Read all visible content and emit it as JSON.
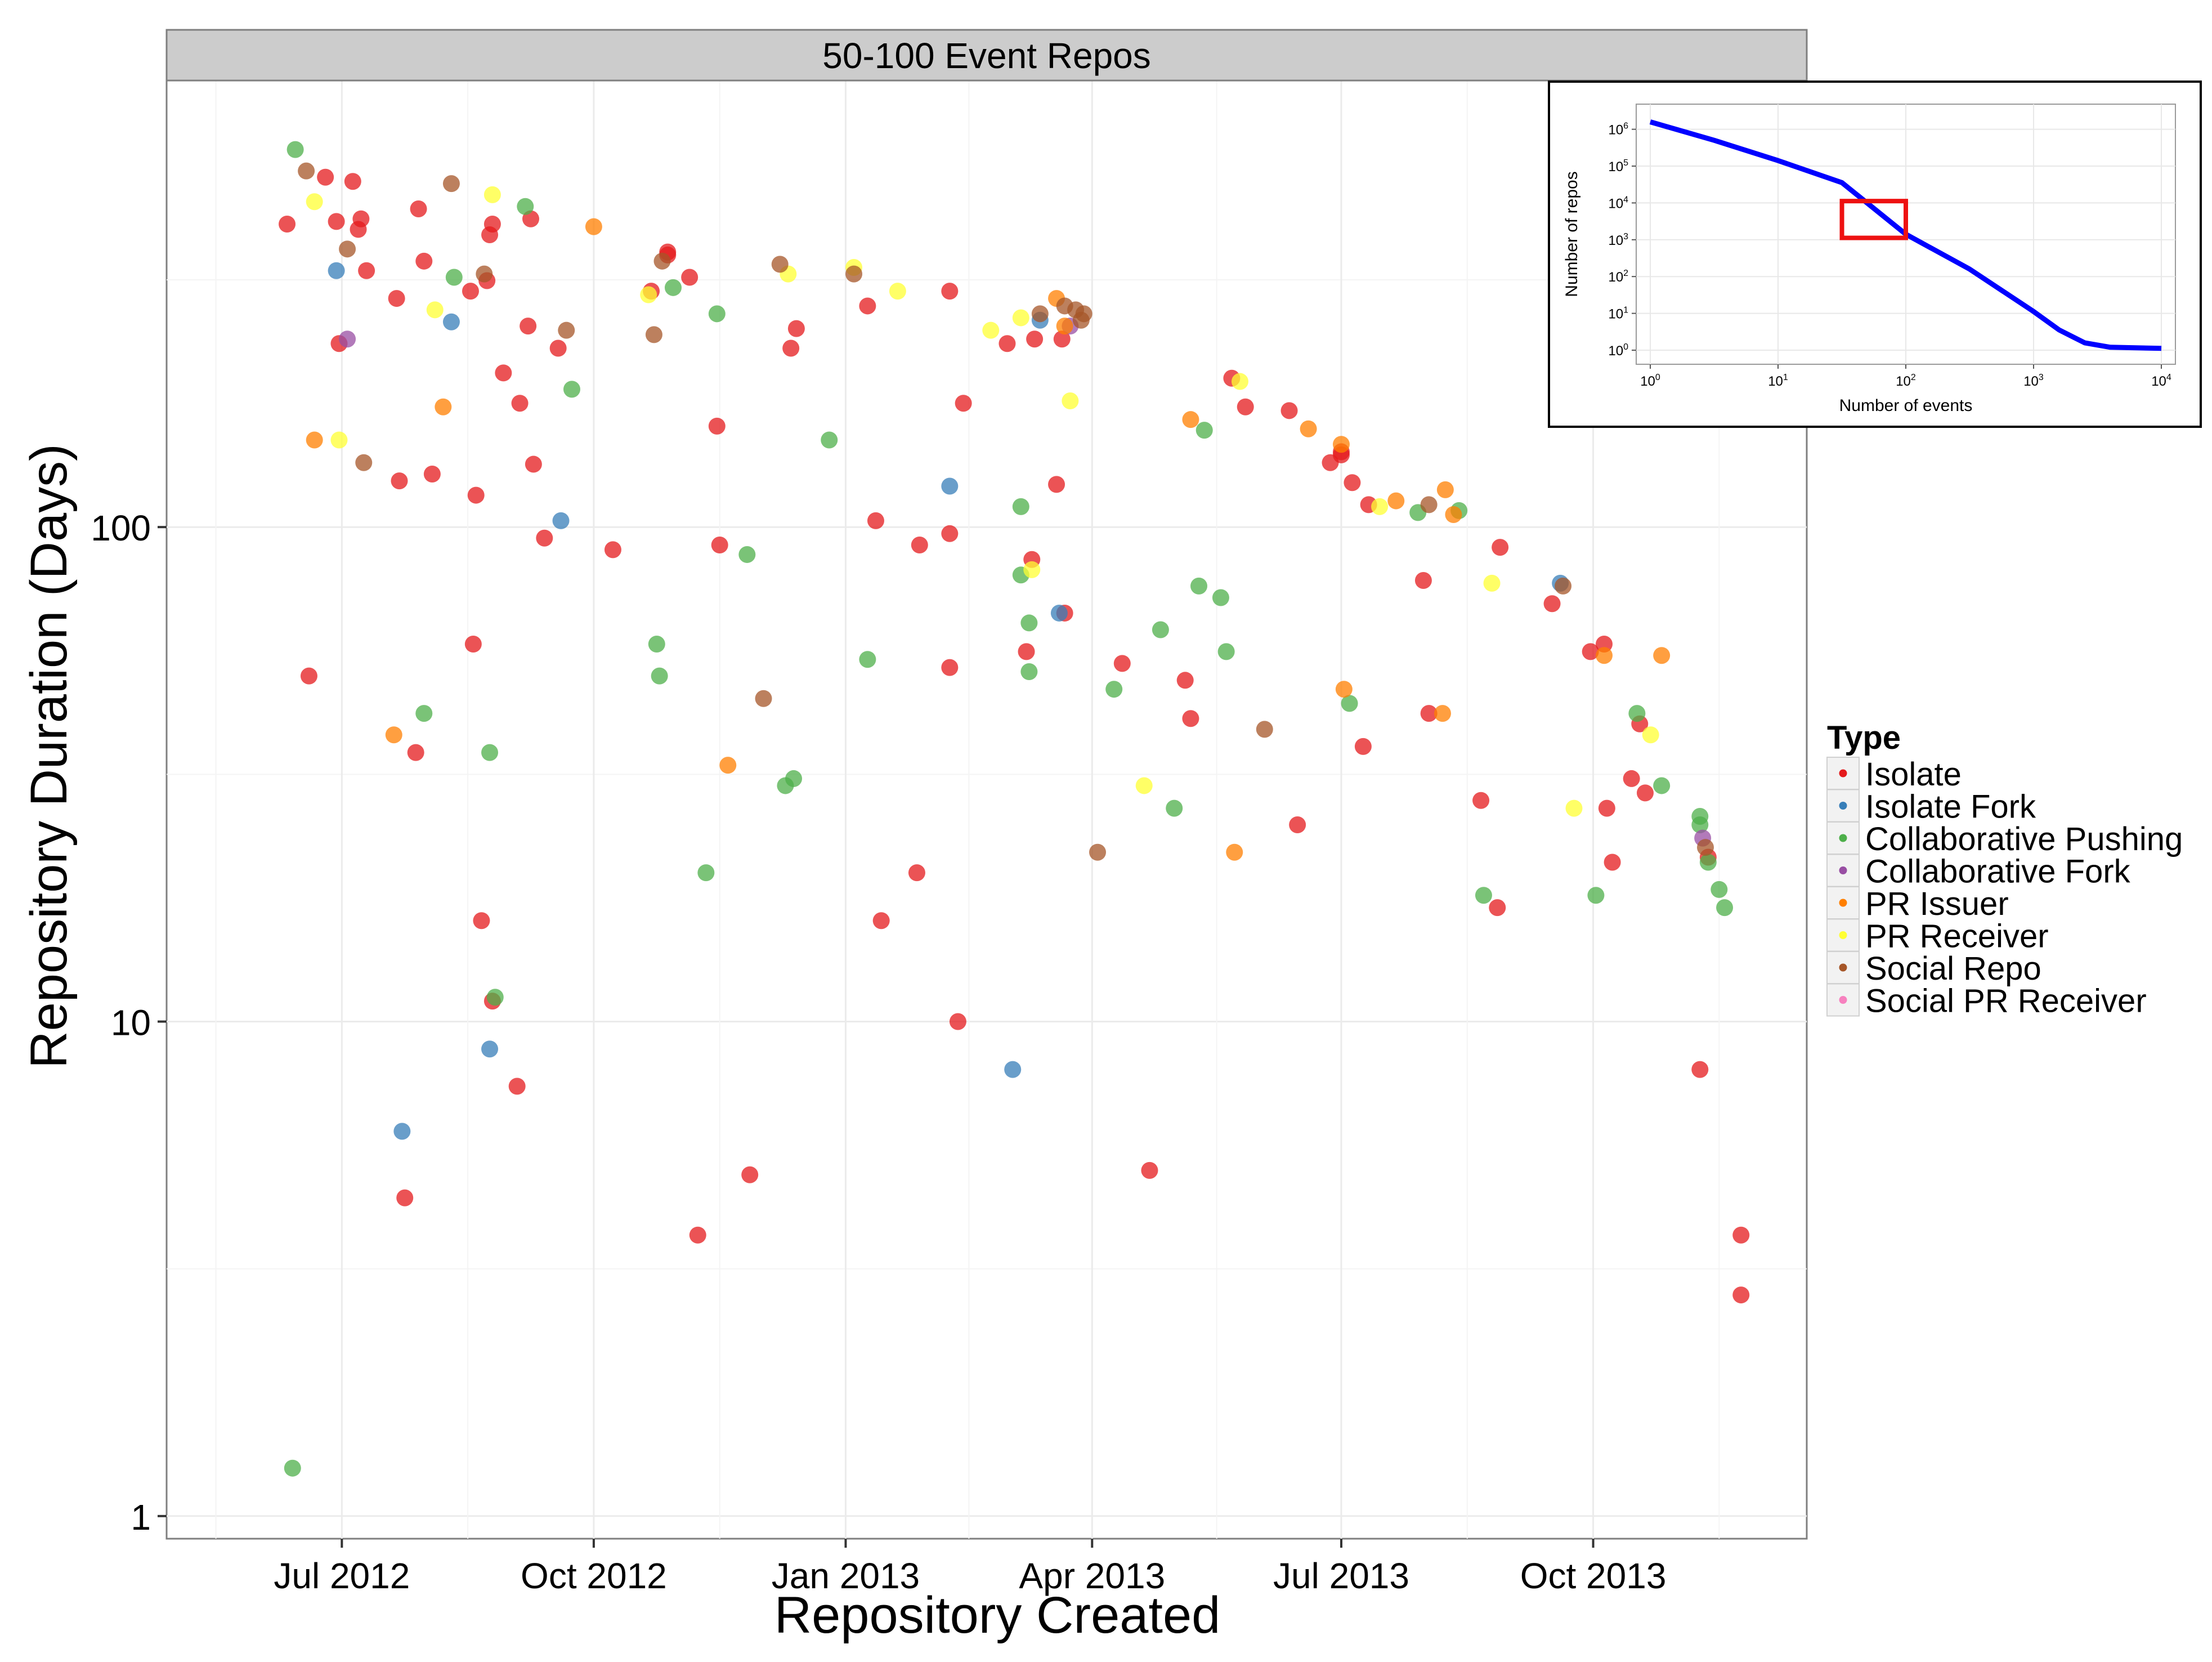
{
  "chart_data": {
    "type": "scatter",
    "panel_title": "50-100 Event Repos",
    "xlabel": "Repository Created",
    "ylabel": "Repository Duration (Days)",
    "y_scale": "log10",
    "ylim": [
      0.9,
      800
    ],
    "xlim": [
      "2012-04-28",
      "2013-12-18"
    ],
    "x_ticks": [
      {
        "date": "2012-07-01",
        "label": "Jul 2012"
      },
      {
        "date": "2012-10-01",
        "label": "Oct 2012"
      },
      {
        "date": "2013-01-01",
        "label": "Jan 2013"
      },
      {
        "date": "2013-04-01",
        "label": "Apr 2013"
      },
      {
        "date": "2013-07-01",
        "label": "Jul 2013"
      },
      {
        "date": "2013-10-01",
        "label": "Oct 2013"
      }
    ],
    "y_ticks": [
      {
        "value": 1,
        "label": "1"
      },
      {
        "value": 10,
        "label": "10"
      },
      {
        "value": 100,
        "label": "100"
      }
    ],
    "grid": true,
    "legend": {
      "title": "Type",
      "placement": "right",
      "entries": [
        {
          "name": "Isolate",
          "color": "#E41A1C"
        },
        {
          "name": "Isolate Fork",
          "color": "#377EB8"
        },
        {
          "name": "Collaborative Pushing",
          "color": "#4DAF4A"
        },
        {
          "name": "Collaborative Fork",
          "color": "#984EA3"
        },
        {
          "name": "PR Issuer",
          "color": "#FF7F00"
        },
        {
          "name": "PR Receiver",
          "color": "#FFFF33"
        },
        {
          "name": "Social Repo",
          "color": "#A65628"
        },
        {
          "name": "Social PR Receiver",
          "color": "#F781BF"
        }
      ]
    },
    "series": [
      {
        "name": "Isolate",
        "points": [
          [
            "2012-06-11",
            410
          ],
          [
            "2012-06-19",
            50
          ],
          [
            "2012-06-25",
            510
          ],
          [
            "2012-06-29",
            415
          ],
          [
            "2012-06-30",
            235
          ],
          [
            "2012-07-05",
            500
          ],
          [
            "2012-07-07",
            400
          ],
          [
            "2012-07-08",
            420
          ],
          [
            "2012-07-10",
            330
          ],
          [
            "2012-07-21",
            290
          ],
          [
            "2012-07-22",
            124
          ],
          [
            "2012-07-24",
            4.4
          ],
          [
            "2012-07-28",
            35
          ],
          [
            "2012-07-29",
            440
          ],
          [
            "2012-07-31",
            345
          ],
          [
            "2012-08-03",
            128
          ],
          [
            "2012-08-17",
            300
          ],
          [
            "2012-08-18",
            58
          ],
          [
            "2012-08-19",
            116
          ],
          [
            "2012-08-21",
            16
          ],
          [
            "2012-08-23",
            315
          ],
          [
            "2012-08-24",
            390
          ],
          [
            "2012-08-25",
            11
          ],
          [
            "2012-08-25",
            410
          ],
          [
            "2012-08-29",
            205
          ],
          [
            "2012-09-03",
            7.4
          ],
          [
            "2012-09-04",
            178
          ],
          [
            "2012-09-07",
            255
          ],
          [
            "2012-09-08",
            420
          ],
          [
            "2012-09-09",
            134
          ],
          [
            "2012-09-13",
            95
          ],
          [
            "2012-09-18",
            230
          ],
          [
            "2012-10-08",
            90
          ],
          [
            "2012-10-22",
            300
          ],
          [
            "2012-10-28",
            355
          ],
          [
            "2012-10-28",
            360
          ],
          [
            "2012-11-05",
            320
          ],
          [
            "2012-11-08",
            3.7
          ],
          [
            "2012-11-15",
            160
          ],
          [
            "2012-11-16",
            92
          ],
          [
            "2012-11-27",
            4.9
          ],
          [
            "2012-12-12",
            230
          ],
          [
            "2012-12-14",
            252
          ],
          [
            "2013-01-09",
            280
          ],
          [
            "2013-01-12",
            103
          ],
          [
            "2013-01-14",
            16
          ],
          [
            "2013-01-27",
            20
          ],
          [
            "2013-01-28",
            92
          ],
          [
            "2013-02-08",
            52
          ],
          [
            "2013-02-08",
            97
          ],
          [
            "2013-02-08",
            300
          ],
          [
            "2013-02-11",
            10
          ],
          [
            "2013-02-13",
            178
          ],
          [
            "2013-03-01",
            235
          ],
          [
            "2013-03-08",
            56
          ],
          [
            "2013-03-10",
            86
          ],
          [
            "2013-03-11",
            240
          ],
          [
            "2013-03-19",
            122
          ],
          [
            "2013-03-21",
            240
          ],
          [
            "2013-03-22",
            67
          ],
          [
            "2013-04-12",
            53
          ],
          [
            "2013-04-22",
            5
          ],
          [
            "2013-05-05",
            49
          ],
          [
            "2013-05-07",
            41
          ],
          [
            "2013-05-22",
            200
          ],
          [
            "2013-05-27",
            175
          ],
          [
            "2013-06-12",
            172
          ],
          [
            "2013-06-15",
            25
          ],
          [
            "2013-06-27",
            135
          ],
          [
            "2013-07-01",
            140
          ],
          [
            "2013-07-01",
            142
          ],
          [
            "2013-07-05",
            123
          ],
          [
            "2013-07-09",
            36
          ],
          [
            "2013-07-11",
            111
          ],
          [
            "2013-07-31",
            78
          ],
          [
            "2013-08-02",
            42
          ],
          [
            "2013-08-21",
            28
          ],
          [
            "2013-08-27",
            17
          ],
          [
            "2013-08-28",
            91
          ],
          [
            "2013-09-16",
            70
          ],
          [
            "2013-09-30",
            56
          ],
          [
            "2013-10-05",
            58
          ],
          [
            "2013-10-06",
            27
          ],
          [
            "2013-10-08",
            21
          ],
          [
            "2013-10-15",
            31
          ],
          [
            "2013-10-18",
            40
          ],
          [
            "2013-10-20",
            29
          ],
          [
            "2013-11-09",
            8
          ],
          [
            "2013-11-12",
            21.5
          ],
          [
            "2013-11-24",
            3.7
          ],
          [
            "2013-11-24",
            2.8
          ]
        ]
      },
      {
        "name": "Isolate Fork",
        "points": [
          [
            "2012-06-29",
            330
          ],
          [
            "2012-07-23",
            6
          ],
          [
            "2012-08-10",
            260
          ],
          [
            "2012-08-24",
            8.8
          ],
          [
            "2012-09-19",
            103
          ],
          [
            "2013-02-08",
            121
          ],
          [
            "2013-03-03",
            8
          ],
          [
            "2013-03-13",
            262
          ],
          [
            "2013-03-20",
            67
          ],
          [
            "2013-09-19",
            77
          ]
        ]
      },
      {
        "name": "Collaborative Pushing",
        "points": [
          [
            "2012-06-13",
            1.25
          ],
          [
            "2012-06-14",
            580
          ],
          [
            "2012-07-31",
            42
          ],
          [
            "2012-08-11",
            320
          ],
          [
            "2012-08-24",
            35
          ],
          [
            "2012-08-26",
            11.2
          ],
          [
            "2012-09-06",
            445
          ],
          [
            "2012-09-23",
            190
          ],
          [
            "2012-10-24",
            58
          ],
          [
            "2012-10-25",
            50
          ],
          [
            "2012-10-30",
            305
          ],
          [
            "2012-11-11",
            20
          ],
          [
            "2012-11-15",
            270
          ],
          [
            "2012-11-26",
            88
          ],
          [
            "2012-12-10",
            30
          ],
          [
            "2012-12-13",
            31
          ],
          [
            "2012-12-26",
            150
          ],
          [
            "2013-01-09",
            54
          ],
          [
            "2013-03-06",
            110
          ],
          [
            "2013-03-06",
            80
          ],
          [
            "2013-03-09",
            64
          ],
          [
            "2013-03-09",
            51
          ],
          [
            "2013-04-09",
            47
          ],
          [
            "2013-04-26",
            62
          ],
          [
            "2013-05-01",
            27
          ],
          [
            "2013-05-10",
            76
          ],
          [
            "2013-05-12",
            157
          ],
          [
            "2013-05-18",
            72
          ],
          [
            "2013-05-20",
            56
          ],
          [
            "2013-07-04",
            44
          ],
          [
            "2013-07-29",
            107
          ],
          [
            "2013-08-13",
            108
          ],
          [
            "2013-08-22",
            18
          ],
          [
            "2013-10-02",
            18
          ],
          [
            "2013-10-17",
            42
          ],
          [
            "2013-10-26",
            30
          ],
          [
            "2013-11-09",
            26
          ],
          [
            "2013-11-09",
            25
          ],
          [
            "2013-11-12",
            21
          ],
          [
            "2013-11-16",
            18.5
          ],
          [
            "2013-11-18",
            17
          ]
        ]
      },
      {
        "name": "Collaborative Fork",
        "points": [
          [
            "2012-07-03",
            240
          ],
          [
            "2013-03-24",
            255
          ],
          [
            "2013-11-10",
            23.5
          ]
        ]
      },
      {
        "name": "PR Issuer",
        "points": [
          [
            "2012-06-21",
            150
          ],
          [
            "2012-07-20",
            38
          ],
          [
            "2012-08-07",
            175
          ],
          [
            "2012-10-01",
            405
          ],
          [
            "2012-11-19",
            33
          ],
          [
            "2013-03-19",
            290
          ],
          [
            "2013-03-22",
            255
          ],
          [
            "2013-05-07",
            165
          ],
          [
            "2013-06-19",
            158
          ],
          [
            "2013-07-01",
            147
          ],
          [
            "2013-07-02",
            47
          ],
          [
            "2013-07-21",
            113
          ],
          [
            "2013-08-07",
            42
          ],
          [
            "2013-08-08",
            119
          ],
          [
            "2013-08-11",
            106
          ],
          [
            "2013-10-05",
            55
          ],
          [
            "2013-10-26",
            55
          ],
          [
            "2013-05-23",
            22
          ]
        ]
      },
      {
        "name": "PR Receiver",
        "points": [
          [
            "2012-06-21",
            455
          ],
          [
            "2012-06-30",
            150
          ],
          [
            "2012-08-04",
            275
          ],
          [
            "2012-08-25",
            470
          ],
          [
            "2012-10-21",
            295
          ],
          [
            "2012-12-11",
            325
          ],
          [
            "2013-01-04",
            335
          ],
          [
            "2013-01-20",
            300
          ],
          [
            "2013-02-23",
            250
          ],
          [
            "2013-03-06",
            265
          ],
          [
            "2013-03-10",
            82
          ],
          [
            "2013-03-24",
            180
          ],
          [
            "2013-04-20",
            30
          ],
          [
            "2013-05-25",
            197
          ],
          [
            "2013-07-15",
            110
          ],
          [
            "2013-08-25",
            77
          ],
          [
            "2013-09-24",
            27
          ],
          [
            "2013-10-22",
            38
          ]
        ]
      },
      {
        "name": "Social Repo",
        "points": [
          [
            "2012-06-18",
            525
          ],
          [
            "2012-07-03",
            365
          ],
          [
            "2012-07-09",
            135
          ],
          [
            "2012-08-10",
            495
          ],
          [
            "2012-08-22",
            325
          ],
          [
            "2012-09-21",
            250
          ],
          [
            "2012-10-23",
            245
          ],
          [
            "2012-10-26",
            345
          ],
          [
            "2012-12-02",
            45
          ],
          [
            "2012-12-08",
            340
          ],
          [
            "2013-01-04",
            325
          ],
          [
            "2013-03-13",
            270
          ],
          [
            "2013-03-22",
            280
          ],
          [
            "2013-03-26",
            275
          ],
          [
            "2013-03-28",
            262
          ],
          [
            "2013-03-29",
            270
          ],
          [
            "2013-04-03",
            22
          ],
          [
            "2013-06-03",
            39
          ],
          [
            "2013-08-02",
            111
          ],
          [
            "2013-09-20",
            76
          ],
          [
            "2013-11-11",
            22.5
          ]
        ]
      },
      {
        "name": "Social PR Receiver",
        "points": []
      }
    ]
  }
}
